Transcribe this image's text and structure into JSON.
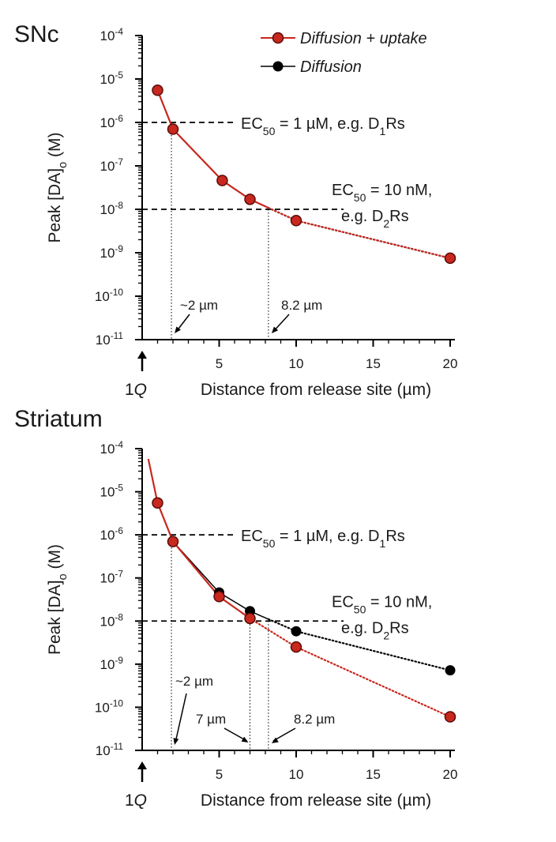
{
  "legend": [
    {
      "label": "Diffusion + uptake",
      "color": "#c8281e"
    },
    {
      "label": "Diffusion",
      "color": "#000000"
    }
  ],
  "chart_data": [
    {
      "type": "line",
      "title": "SNc",
      "xlabel": "Distance from release site (µm)",
      "ylabel": "Peak [DA]o (M)",
      "xlim": [
        0,
        20
      ],
      "ylim": [
        1e-11,
        0.0001
      ],
      "yscale": "log",
      "x_ticks": [
        "5",
        "10",
        "15",
        "20"
      ],
      "x_origin_label": "1Q",
      "y_ticks": [
        {
          "base": "10",
          "exp": "-4"
        },
        {
          "base": "10",
          "exp": "-5"
        },
        {
          "base": "10",
          "exp": "-6"
        },
        {
          "base": "10",
          "exp": "-7"
        },
        {
          "base": "10",
          "exp": "-8"
        },
        {
          "base": "10",
          "exp": "-9"
        },
        {
          "base": "10",
          "exp": "-10"
        },
        {
          "base": "10",
          "exp": "-11"
        }
      ],
      "series": [
        {
          "name": "Diffusion + uptake",
          "color": "#c8281e",
          "x": [
            1,
            2,
            5.2,
            7,
            10,
            20
          ],
          "y": [
            5.5e-06,
            7e-07,
            4.6e-08,
            1.7e-08,
            5.5e-09,
            7.5e-10
          ]
        },
        {
          "name": "Diffusion",
          "color": "#000000",
          "x": [
            1,
            2,
            5.2,
            7,
            10,
            20
          ],
          "y": [
            5.5e-06,
            7e-07,
            4.6e-08,
            1.7e-08,
            5.5e-09,
            7.5e-10
          ]
        }
      ],
      "thresholds": [
        {
          "y": 1e-06,
          "x_cross": 1.9,
          "text1": "EC",
          "sub1": "50",
          "text2": " = 1 µM, e.g. D",
          "sub2": "1",
          "text3": "Rs"
        },
        {
          "y": 1e-08,
          "x_cross": 8.2,
          "line1": "EC",
          "sub1": "50",
          "line1b": " = 10 nM,",
          "line2a": "e.g. D",
          "sub2": "2",
          "line2b": "Rs"
        }
      ],
      "annotations": [
        "~2 µm",
        "8.2 µm"
      ]
    },
    {
      "type": "line",
      "title": "Striatum",
      "xlabel": "Distance from release site (µm)",
      "ylabel": "Peak [DA]o (M)",
      "xlim": [
        0,
        20
      ],
      "ylim": [
        1e-11,
        0.0001
      ],
      "yscale": "log",
      "x_ticks": [
        "5",
        "10",
        "15",
        "20"
      ],
      "x_origin_label": "1Q",
      "y_ticks": [
        {
          "base": "10",
          "exp": "-4"
        },
        {
          "base": "10",
          "exp": "-5"
        },
        {
          "base": "10",
          "exp": "-6"
        },
        {
          "base": "10",
          "exp": "-7"
        },
        {
          "base": "10",
          "exp": "-8"
        },
        {
          "base": "10",
          "exp": "-9"
        },
        {
          "base": "10",
          "exp": "-10"
        },
        {
          "base": "10",
          "exp": "-11"
        }
      ],
      "series": [
        {
          "name": "Diffusion + uptake",
          "color": "#c8281e",
          "x": [
            1,
            2,
            5,
            7,
            10,
            20
          ],
          "y": [
            5.5e-06,
            7e-07,
            3.7e-08,
            1.15e-08,
            2.5e-09,
            6e-11
          ]
        },
        {
          "name": "Diffusion",
          "color": "#000000",
          "x": [
            1,
            2,
            5,
            7,
            10,
            20
          ],
          "y": [
            5.5e-06,
            7e-07,
            4.6e-08,
            1.7e-08,
            5.8e-09,
            7.2e-10
          ]
        }
      ],
      "thresholds": [
        {
          "y": 1e-06,
          "x_cross": 1.9,
          "text1": "EC",
          "sub1": "50",
          "text2": " = 1 µM, e.g. D",
          "sub2": "1",
          "text3": "Rs"
        },
        {
          "y": 1e-08,
          "x_cross_uptake": 7,
          "x_cross_diff": 8.2,
          "line1": "EC",
          "sub1": "50",
          "line1b": " = 10 nM,",
          "line2a": "e.g. D",
          "sub2": "2",
          "line2b": "Rs"
        }
      ],
      "annotations": [
        "~2 µm",
        "7 µm",
        "8.2 µm"
      ]
    }
  ]
}
